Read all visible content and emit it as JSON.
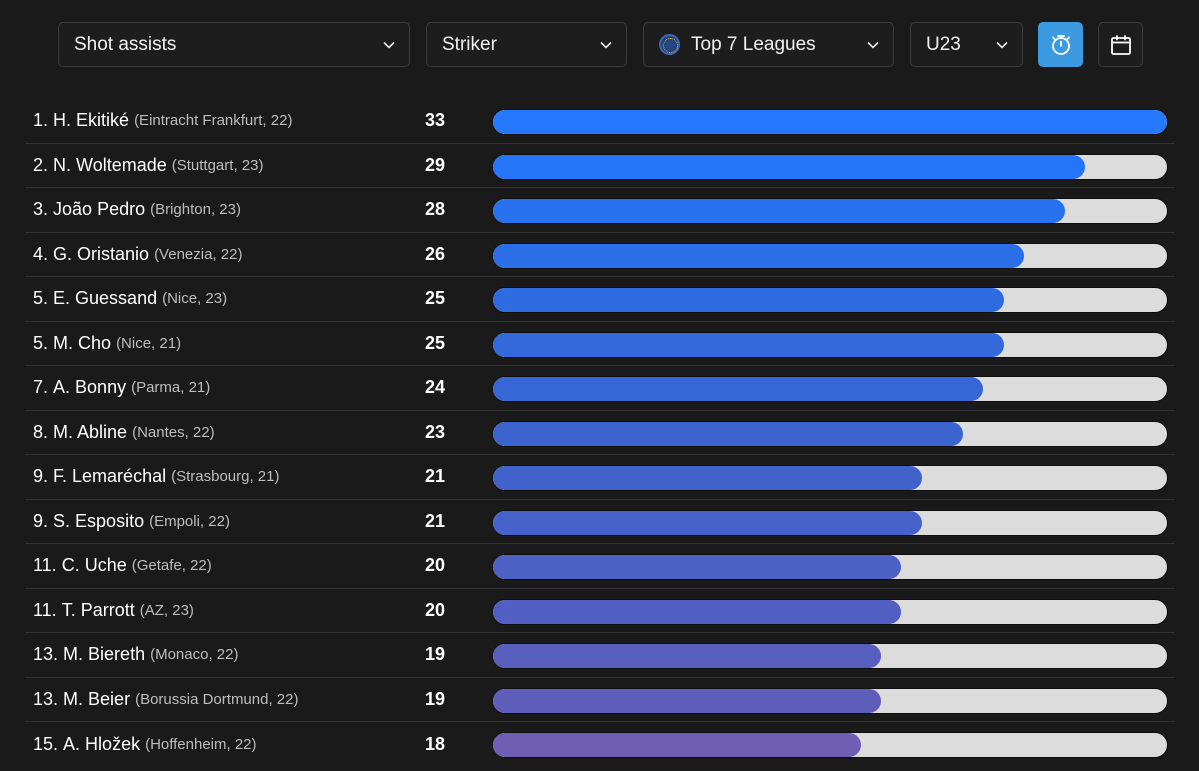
{
  "filters": {
    "metric": "Shot assists",
    "position": "Striker",
    "league": "Top 7 Leagues",
    "age": "U23"
  },
  "icons": {
    "chevron": "chevron-down-icon",
    "globe": "globe-icon",
    "stopwatch": "stopwatch-icon",
    "calendar": "calendar-icon"
  },
  "colors": {
    "accent": "#3b9ae0",
    "bar_start": "#2479ff",
    "bar_end": "#6e5fb5",
    "track": "#dcdcdc"
  },
  "max_value": 33,
  "players": [
    {
      "rank": "1.",
      "name": "H. Ekitiké",
      "meta": "(Eintracht Frankfurt, 22)",
      "value": 33,
      "color": "#2479ff"
    },
    {
      "rank": "2.",
      "name": "N. Woltemade",
      "meta": "(Stuttgart, 23)",
      "value": 29,
      "color": "#2575f8"
    },
    {
      "rank": "3.",
      "name": "João Pedro",
      "meta": "(Brighton, 23)",
      "value": 28,
      "color": "#2872f0"
    },
    {
      "rank": "4.",
      "name": "G. Oristanio",
      "meta": "(Venezia, 22)",
      "value": 26,
      "color": "#2b6fe8"
    },
    {
      "rank": "5.",
      "name": "E. Guessand",
      "meta": "(Nice, 23)",
      "value": 25,
      "color": "#2f6be0"
    },
    {
      "rank": "5.",
      "name": "M. Cho",
      "meta": "(Nice, 21)",
      "value": 25,
      "color": "#3369db"
    },
    {
      "rank": "7.",
      "name": "A. Bonny",
      "meta": "(Parma, 21)",
      "value": 24,
      "color": "#3766d5"
    },
    {
      "rank": "8.",
      "name": "M. Abline",
      "meta": "(Nantes, 22)",
      "value": 23,
      "color": "#3b64cf"
    },
    {
      "rank": "9.",
      "name": "F. Lemaréchal",
      "meta": "(Strasbourg, 21)",
      "value": 21,
      "color": "#4262cb"
    },
    {
      "rank": "9.",
      "name": "S. Esposito",
      "meta": "(Empoli, 22)",
      "value": 21,
      "color": "#4661c9"
    },
    {
      "rank": "11.",
      "name": "C. Uche",
      "meta": "(Getafe, 22)",
      "value": 20,
      "color": "#4d60c4"
    },
    {
      "rank": "11.",
      "name": "T. Parrott",
      "meta": "(AZ, 23)",
      "value": 20,
      "color": "#525fc2"
    },
    {
      "rank": "13.",
      "name": "M. Biereth",
      "meta": "(Monaco, 22)",
      "value": 19,
      "color": "#585ebe"
    },
    {
      "rank": "13.",
      "name": "M. Beier",
      "meta": "(Borussia Dortmund, 22)",
      "value": 19,
      "color": "#5e5dba"
    },
    {
      "rank": "15.",
      "name": "A. Hložek",
      "meta": "(Hoffenheim, 22)",
      "value": 18,
      "color": "#6e5fb5"
    }
  ]
}
